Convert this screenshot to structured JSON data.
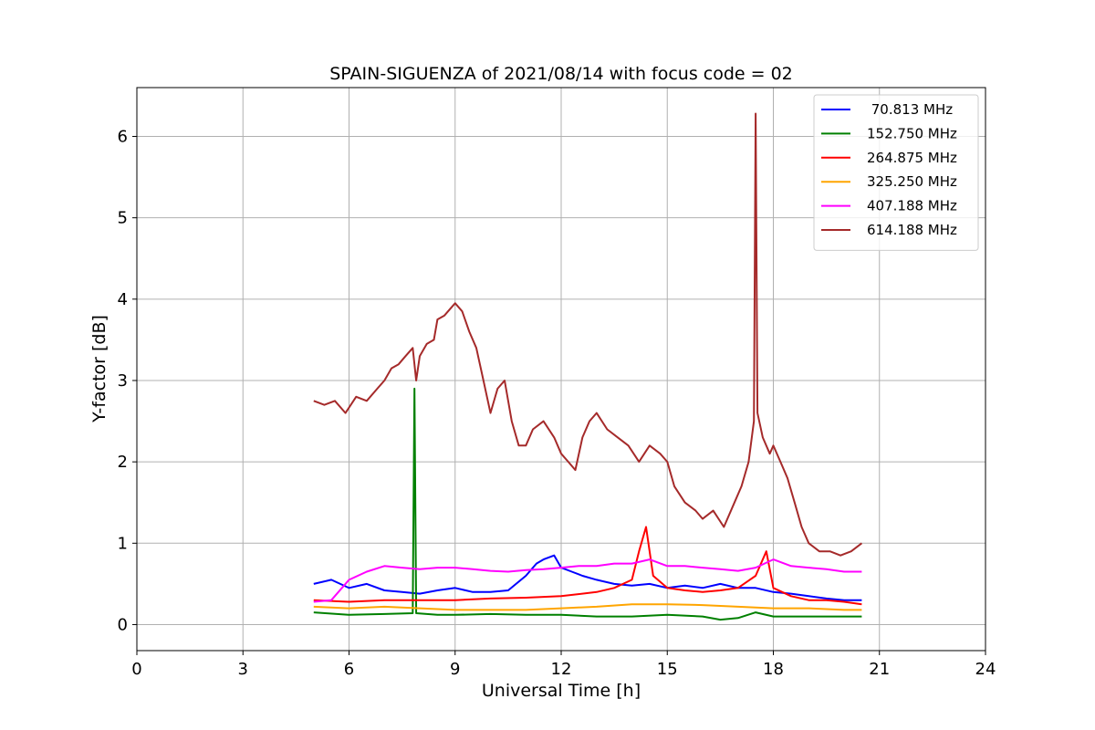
{
  "chart_data": {
    "type": "line",
    "title": "SPAIN-SIGUENZA of 2021/08/14 with focus code = 02",
    "xlabel": "Universal Time [h]",
    "ylabel": "Y-factor [dB]",
    "xlim": [
      0,
      24
    ],
    "ylim": [
      -0.32,
      6.6
    ],
    "xticks": [
      0,
      3,
      6,
      9,
      12,
      15,
      18,
      21,
      24
    ],
    "yticks": [
      0,
      1,
      2,
      3,
      4,
      5,
      6
    ],
    "grid": true,
    "legend_position": "top-right",
    "series": [
      {
        "name": " 70.813 MHz",
        "color": "#0000ff",
        "x": [
          5.0,
          5.5,
          6.0,
          6.5,
          7.0,
          7.5,
          8.0,
          8.5,
          9.0,
          9.5,
          10.0,
          10.5,
          11.0,
          11.3,
          11.5,
          11.8,
          12.0,
          12.3,
          12.6,
          13.0,
          13.5,
          14.0,
          14.5,
          15.0,
          15.5,
          16.0,
          16.5,
          17.0,
          17.5,
          18.0,
          18.5,
          19.0,
          19.5,
          20.0,
          20.5
        ],
        "y": [
          0.5,
          0.55,
          0.45,
          0.5,
          0.42,
          0.4,
          0.38,
          0.42,
          0.45,
          0.4,
          0.4,
          0.42,
          0.6,
          0.75,
          0.8,
          0.85,
          0.7,
          0.65,
          0.6,
          0.55,
          0.5,
          0.48,
          0.5,
          0.45,
          0.48,
          0.45,
          0.5,
          0.45,
          0.45,
          0.4,
          0.38,
          0.35,
          0.32,
          0.3,
          0.3
        ]
      },
      {
        "name": "152.750 MHz",
        "color": "#008000",
        "x": [
          5.0,
          6.0,
          7.0,
          7.8,
          7.85,
          7.9,
          8.5,
          9.0,
          10.0,
          11.0,
          12.0,
          13.0,
          14.0,
          15.0,
          16.0,
          16.5,
          17.0,
          17.5,
          18.0,
          19.0,
          20.0,
          20.5
        ],
        "y": [
          0.15,
          0.12,
          0.13,
          0.14,
          2.9,
          0.14,
          0.12,
          0.12,
          0.13,
          0.12,
          0.12,
          0.1,
          0.1,
          0.12,
          0.1,
          0.06,
          0.08,
          0.15,
          0.1,
          0.1,
          0.1,
          0.1
        ]
      },
      {
        "name": "264.875 MHz",
        "color": "#ff0000",
        "x": [
          5.0,
          6.0,
          7.0,
          8.0,
          9.0,
          10.0,
          11.0,
          12.0,
          13.0,
          13.5,
          14.0,
          14.2,
          14.4,
          14.6,
          15.0,
          15.5,
          16.0,
          16.5,
          17.0,
          17.5,
          17.8,
          18.0,
          18.5,
          19.0,
          19.5,
          20.0,
          20.5
        ],
        "y": [
          0.3,
          0.28,
          0.3,
          0.3,
          0.3,
          0.32,
          0.33,
          0.35,
          0.4,
          0.45,
          0.55,
          0.9,
          1.2,
          0.6,
          0.45,
          0.42,
          0.4,
          0.42,
          0.45,
          0.6,
          0.9,
          0.45,
          0.35,
          0.3,
          0.3,
          0.28,
          0.25
        ]
      },
      {
        "name": "325.250 MHz",
        "color": "#ffa500",
        "x": [
          5.0,
          6.0,
          7.0,
          8.0,
          9.0,
          10.0,
          11.0,
          12.0,
          13.0,
          14.0,
          15.0,
          16.0,
          17.0,
          18.0,
          19.0,
          20.0,
          20.5
        ],
        "y": [
          0.22,
          0.2,
          0.22,
          0.2,
          0.18,
          0.18,
          0.18,
          0.2,
          0.22,
          0.25,
          0.25,
          0.24,
          0.22,
          0.2,
          0.2,
          0.18,
          0.18
        ]
      },
      {
        "name": "407.188 MHz",
        "color": "#ff00ff",
        "x": [
          5.0,
          5.5,
          6.0,
          6.5,
          7.0,
          7.5,
          8.0,
          8.5,
          9.0,
          9.5,
          10.0,
          10.5,
          11.0,
          11.5,
          12.0,
          12.5,
          13.0,
          13.5,
          14.0,
          14.5,
          15.0,
          15.5,
          16.0,
          16.5,
          17.0,
          17.5,
          18.0,
          18.5,
          19.0,
          19.5,
          20.0,
          20.5
        ],
        "y": [
          0.28,
          0.3,
          0.55,
          0.65,
          0.72,
          0.7,
          0.68,
          0.7,
          0.7,
          0.68,
          0.66,
          0.65,
          0.67,
          0.68,
          0.7,
          0.72,
          0.72,
          0.75,
          0.75,
          0.8,
          0.72,
          0.72,
          0.7,
          0.68,
          0.66,
          0.7,
          0.8,
          0.72,
          0.7,
          0.68,
          0.65,
          0.65
        ]
      },
      {
        "name": "614.188 MHz",
        "color": "#a52a2a",
        "x": [
          5.0,
          5.3,
          5.6,
          5.9,
          6.2,
          6.5,
          6.8,
          7.0,
          7.2,
          7.4,
          7.6,
          7.8,
          7.9,
          8.0,
          8.2,
          8.4,
          8.5,
          8.7,
          8.9,
          9.0,
          9.2,
          9.4,
          9.6,
          9.8,
          10.0,
          10.2,
          10.4,
          10.6,
          10.8,
          11.0,
          11.2,
          11.5,
          11.8,
          12.0,
          12.2,
          12.4,
          12.6,
          12.8,
          13.0,
          13.3,
          13.6,
          13.9,
          14.2,
          14.5,
          14.8,
          15.0,
          15.2,
          15.5,
          15.8,
          16.0,
          16.3,
          16.6,
          16.9,
          17.1,
          17.3,
          17.45,
          17.5,
          17.55,
          17.7,
          17.9,
          18.0,
          18.2,
          18.4,
          18.6,
          18.8,
          19.0,
          19.3,
          19.6,
          19.9,
          20.2,
          20.5
        ],
        "y": [
          2.75,
          2.7,
          2.75,
          2.6,
          2.8,
          2.75,
          2.9,
          3.0,
          3.15,
          3.2,
          3.3,
          3.4,
          3.0,
          3.3,
          3.45,
          3.5,
          3.75,
          3.8,
          3.9,
          3.95,
          3.85,
          3.6,
          3.4,
          3.0,
          2.6,
          2.9,
          3.0,
          2.5,
          2.2,
          2.2,
          2.4,
          2.5,
          2.3,
          2.1,
          2.0,
          1.9,
          2.3,
          2.5,
          2.6,
          2.4,
          2.3,
          2.2,
          2.0,
          2.2,
          2.1,
          2.0,
          1.7,
          1.5,
          1.4,
          1.3,
          1.4,
          1.2,
          1.5,
          1.7,
          2.0,
          2.5,
          6.28,
          2.6,
          2.3,
          2.1,
          2.2,
          2.0,
          1.8,
          1.5,
          1.2,
          1.0,
          0.9,
          0.9,
          0.85,
          0.9,
          1.0
        ]
      }
    ]
  }
}
